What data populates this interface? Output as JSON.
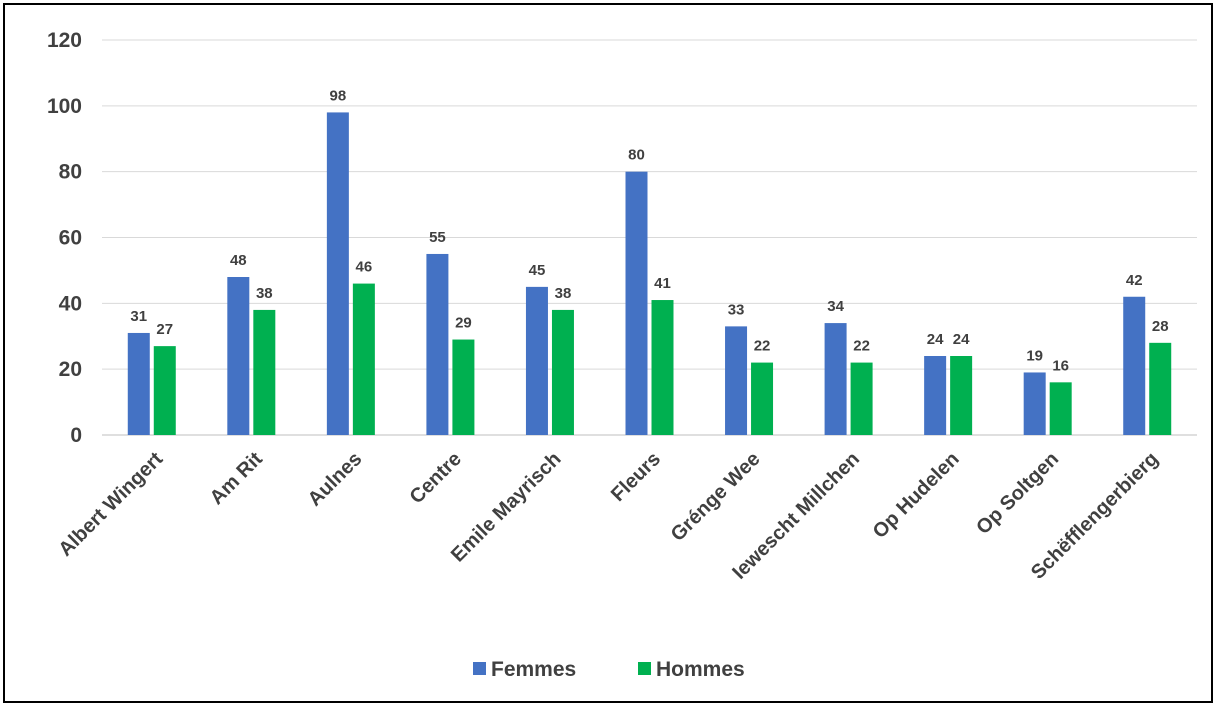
{
  "chart_data": {
    "type": "bar",
    "categories": [
      "Albert Wingert",
      "Am Rit",
      "Aulnes",
      "Centre",
      "Emile Mayrisch",
      "Fleurs",
      "Grénge Wee",
      "Iewescht Millchen",
      "Op Hudelen",
      "Op Soltgen",
      "Schëfflengerbierg"
    ],
    "series": [
      {
        "name": "Femmes",
        "color": "#4472c4",
        "values": [
          31,
          48,
          98,
          55,
          45,
          80,
          33,
          34,
          24,
          19,
          42
        ]
      },
      {
        "name": "Hommes",
        "color": "#00b050",
        "values": [
          27,
          38,
          46,
          29,
          38,
          41,
          22,
          22,
          24,
          16,
          28
        ]
      }
    ],
    "ylim": [
      0,
      120
    ],
    "yticks": [
      "0",
      "20",
      "40",
      "60",
      "80",
      "100",
      "120"
    ],
    "grid": true,
    "legend_position": "bottom",
    "title": "",
    "xlabel": "",
    "ylabel": ""
  }
}
